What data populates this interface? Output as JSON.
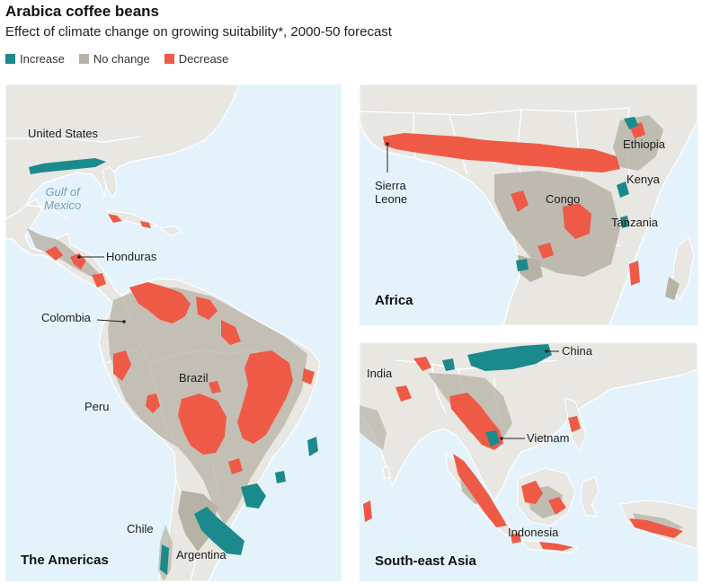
{
  "header": {
    "title": "Arabica coffee beans",
    "subtitle": "Effect of climate change on growing suitability*, 2000-50 forecast"
  },
  "legend": [
    {
      "label": "Increase",
      "color": "#1b8a8c"
    },
    {
      "label": "No change",
      "color": "#b7b2a6"
    },
    {
      "label": "Decrease",
      "color": "#ef5a46"
    }
  ],
  "colors": {
    "sea": "#e4f3fb",
    "land": "#e8e7e2",
    "border": "#ffffff"
  },
  "panels": {
    "americas": {
      "title": "The Americas",
      "labels": {
        "us": "United States",
        "gulf": "Gulf of\nMexico",
        "honduras": "Honduras",
        "colombia": "Colombia",
        "brazil": "Brazil",
        "peru": "Peru",
        "chile": "Chile",
        "argentina": "Argentina"
      }
    },
    "africa": {
      "title": "Africa",
      "labels": {
        "ethiopia": "Ethiopia",
        "kenya": "Kenya",
        "congo": "Congo",
        "tanzania": "Tanzania",
        "sierra_leone": "Sierra\nLeone"
      }
    },
    "asia": {
      "title": "South-east Asia",
      "labels": {
        "india": "India",
        "china": "China",
        "vietnam": "Vietnam",
        "indonesia": "Indonesia"
      }
    }
  }
}
